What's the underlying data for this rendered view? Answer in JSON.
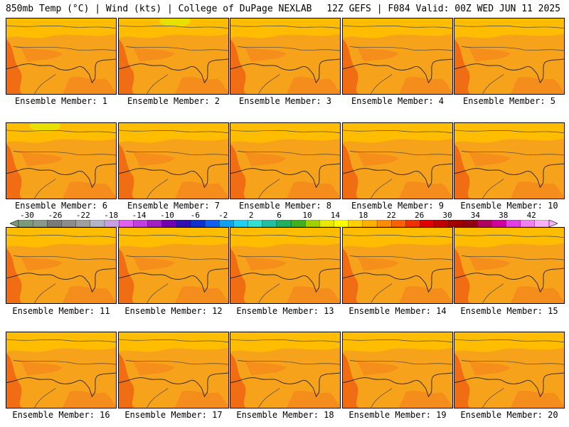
{
  "header": {
    "left": "850mb Temp (°C) | Wind (kts) | College of DuPage NEXLAB",
    "right": "12Z GEFS | F084 Valid: 00Z WED JUN 11 2025"
  },
  "members": [
    "Ensemble Member: 1",
    "Ensemble Member: 2",
    "Ensemble Member: 3",
    "Ensemble Member: 4",
    "Ensemble Member: 5",
    "Ensemble Member: 6",
    "Ensemble Member: 7",
    "Ensemble Member: 8",
    "Ensemble Member: 9",
    "Ensemble Member: 10",
    "Ensemble Member: 11",
    "Ensemble Member: 12",
    "Ensemble Member: 13",
    "Ensemble Member: 14",
    "Ensemble Member: 15",
    "Ensemble Member: 16",
    "Ensemble Member: 17",
    "Ensemble Member: 18",
    "Ensemble Member: 19",
    "Ensemble Member: 20"
  ],
  "colorbar": {
    "ticks": [
      "-30",
      "-26",
      "-22",
      "-18",
      "-14",
      "-10",
      "-6",
      "-2",
      "2",
      "6",
      "10",
      "14",
      "18",
      "22",
      "26",
      "30",
      "34",
      "38",
      "42"
    ],
    "colors": [
      "#7a9a7a",
      "#8a9a8a",
      "#7a7a7a",
      "#8c8c8c",
      "#a0a0a0",
      "#b4b4c8",
      "#c8a0e0",
      "#e060f0",
      "#c040e0",
      "#a020c0",
      "#7000b0",
      "#3010b0",
      "#1030d0",
      "#1060f0",
      "#10a0f0",
      "#20d0f0",
      "#30e0d0",
      "#20c0a0",
      "#20b060",
      "#40b020",
      "#a0d000",
      "#e8e800",
      "#ffff00",
      "#ffd000",
      "#ffb000",
      "#ff8c00",
      "#ff6000",
      "#f03000",
      "#e00000",
      "#c00000",
      "#a00000",
      "#900010",
      "#b00060",
      "#d000a0",
      "#e040e0",
      "#f080f0",
      "#f8b0f8"
    ],
    "panel_base": "#f7a21b",
    "hot": "#f06a14",
    "warm": "#f58a1c",
    "cool": "#ffc000",
    "coolest": "#e8e000"
  }
}
